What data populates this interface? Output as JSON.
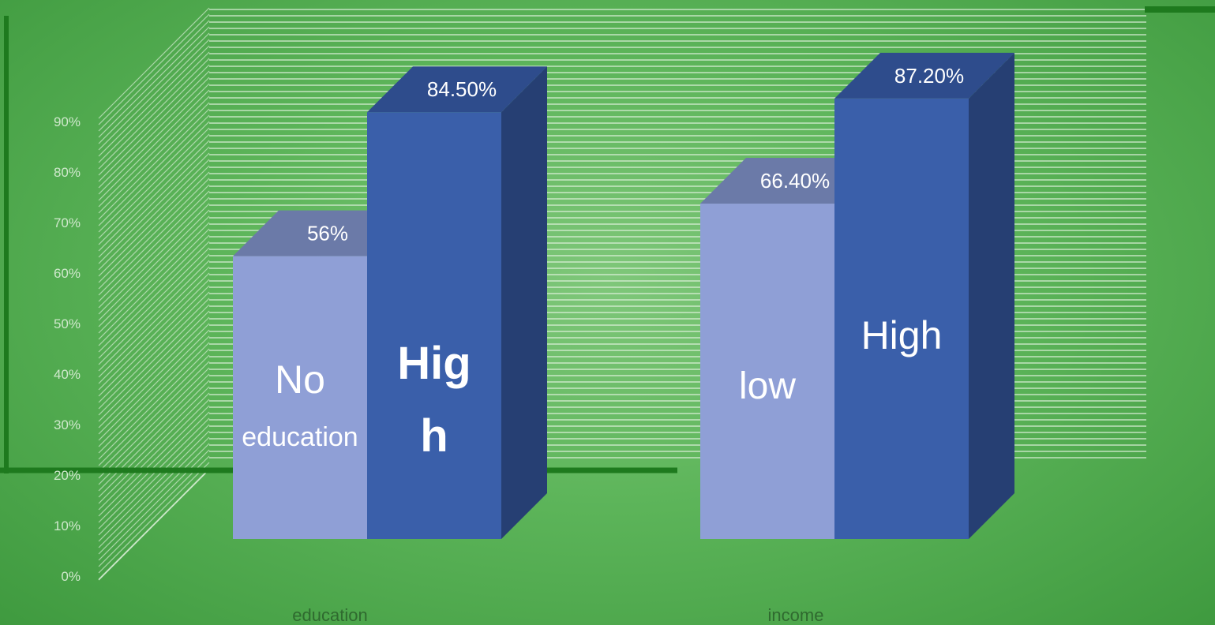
{
  "colors": {
    "background": "#5db55a",
    "grid_line": "#e8f5e6",
    "light_bar_front": "#8f9fd6",
    "light_bar_top": "#6b7aa8",
    "dark_bar_front": "#3a5faa",
    "dark_bar_top": "#2e4c8c",
    "dark_bar_side": "#263f73",
    "accent_line": "#1e7a1e",
    "overlay_text": "#1a6b1a"
  },
  "chart_data": {
    "type": "bar",
    "three_d": true,
    "categories": [
      "education",
      "income"
    ],
    "ylim": [
      0,
      0.9
    ],
    "yticks": [
      "0%",
      "10%",
      "20%",
      "30%",
      "40%",
      "50%",
      "60%",
      "70%",
      "80%",
      "90%"
    ],
    "grid": true,
    "bars": [
      {
        "category": "education",
        "value": 0.56,
        "data_label": "56%",
        "text_lines": [
          "No",
          "education"
        ],
        "style": "light"
      },
      {
        "category": "education",
        "value": 0.845,
        "data_label": "84.50%",
        "text_lines": [
          "Hig",
          "h"
        ],
        "style": "dark",
        "text_style": "overlay"
      },
      {
        "category": "income",
        "value": 0.664,
        "data_label": "66.40%",
        "text_lines": [
          "low"
        ],
        "style": "light"
      },
      {
        "category": "income",
        "value": 0.872,
        "data_label": "87.20%",
        "text_lines": [
          "High"
        ],
        "style": "dark"
      }
    ]
  }
}
